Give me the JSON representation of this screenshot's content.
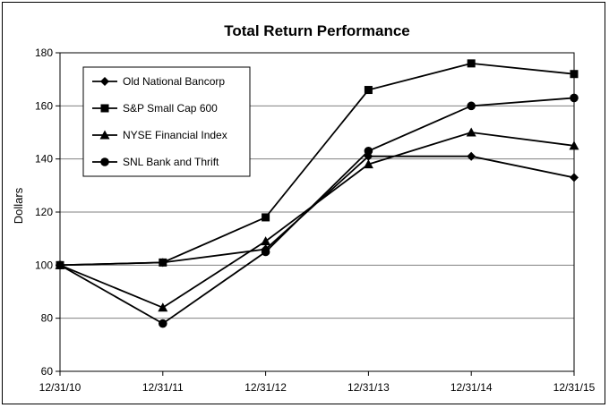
{
  "chart_data": {
    "type": "line",
    "title": "Total Return Performance",
    "ylabel": "Dollars",
    "xlabel": "",
    "x": [
      "12/31/10",
      "12/31/11",
      "12/31/12",
      "12/31/13",
      "12/31/14",
      "12/31/15"
    ],
    "ylim": [
      60,
      180
    ],
    "yticks": [
      60,
      80,
      100,
      120,
      140,
      160,
      180
    ],
    "grid": true,
    "legend_position": "top-left",
    "series": [
      {
        "name": "Old National Bancorp",
        "marker": "diamond",
        "values": [
          100,
          101,
          106,
          141,
          141,
          133
        ]
      },
      {
        "name": "S&P Small Cap 600",
        "marker": "square",
        "values": [
          100,
          101,
          118,
          166,
          176,
          172
        ]
      },
      {
        "name": "NYSE Financial Index",
        "marker": "triangle",
        "values": [
          100,
          84,
          109,
          138,
          150,
          145
        ]
      },
      {
        "name": "SNL Bank and Thrift",
        "marker": "circle",
        "values": [
          100,
          78,
          105,
          143,
          160,
          163
        ]
      }
    ],
    "colors": {
      "line": "#000000",
      "grid": "#808080",
      "background": "#ffffff"
    }
  }
}
